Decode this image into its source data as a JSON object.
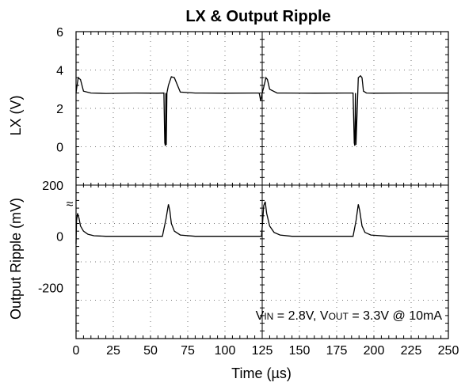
{
  "chart_data": {
    "type": "line",
    "title": "LX & Output Ripple",
    "xlabel": "Time (µs)",
    "xlim": [
      0,
      250
    ],
    "x_ticks": [
      "0",
      "25",
      "50",
      "75",
      "100",
      "125",
      "150",
      "175",
      "200",
      "225",
      "250"
    ],
    "grid": true,
    "panels": [
      {
        "ylabel": "LX (V)",
        "y_tick_labels": [
          "6",
          "4",
          "2",
          "0"
        ],
        "ylim": [
          -2,
          6
        ],
        "series": [
          {
            "x": [
              0,
              0.5,
              1.5,
              3,
              5,
              10,
              20,
              40,
              55,
              59,
              59.6,
              60,
              60.3,
              60.6,
              61,
              62,
              64,
              66,
              70,
              80,
              100,
              120,
              123,
              124,
              125,
              126,
              127.5,
              128.5,
              130,
              135,
              140,
              160,
              180,
              186,
              186.8,
              187.2,
              187.6,
              188,
              189.5,
              191,
              192,
              193,
              195,
              200,
              220,
              250
            ],
            "y": [
              2.8,
              3.1,
              3.6,
              3.5,
              2.9,
              2.8,
              2.78,
              2.8,
              2.79,
              2.8,
              0.2,
              0.05,
              2.8,
              0.1,
              2.8,
              3.2,
              3.65,
              3.6,
              2.85,
              2.8,
              2.79,
              2.8,
              2.8,
              2.4,
              2.8,
              3.1,
              3.6,
              3.5,
              3.0,
              2.8,
              2.8,
              2.79,
              2.8,
              2.8,
              0.2,
              0.05,
              2.8,
              0.1,
              3.6,
              3.7,
              3.6,
              2.9,
              2.8,
              2.79,
              2.8,
              2.8
            ]
          }
        ]
      },
      {
        "ylabel": "Output Ripple (mV)",
        "y_tick_labels": [
          "200",
          "0",
          "-200"
        ],
        "ylim": [
          -400,
          200
        ],
        "series": [
          {
            "x": [
              0,
              0.3,
              1,
              2,
              3,
              5,
              8,
              12,
              20,
              40,
              58,
              60.5,
              62,
              63,
              64,
              66,
              70,
              80,
              100,
              124.5,
              125.2,
              126,
              127,
              128,
              130,
              133,
              137,
              145,
              170,
              186,
              188,
              189.5,
              190.5,
              192,
              194,
              198,
              210,
              230,
              250
            ],
            "y": [
              -30,
              60,
              90,
              70,
              40,
              20,
              8,
              2,
              0,
              0,
              0,
              70,
              125,
              100,
              50,
              20,
              5,
              0,
              0,
              0,
              50,
              120,
              135,
              90,
              40,
              15,
              5,
              0,
              0,
              0,
              60,
              125,
              100,
              40,
              15,
              5,
              0,
              0,
              0
            ]
          }
        ]
      }
    ],
    "annotation": {
      "main": "V",
      "sub1": "IN",
      "mid": " = 2.8V, V",
      "sub2": "OUT",
      "tail": " = 3.3V  @  10mA"
    },
    "break_mark": "≈"
  }
}
